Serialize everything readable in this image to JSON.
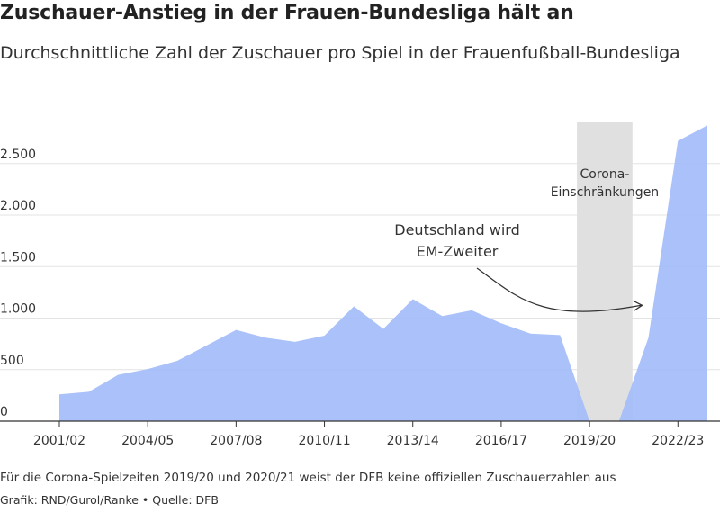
{
  "chart_data": {
    "type": "area",
    "title": "Zuschauer-Anstieg in der Frauen-Bundesliga hält an",
    "subtitle": "Durchschnittliche Zahl der Zuschauer pro Spiel in der Frauenfußball-Bundesliga",
    "xlabel": "",
    "ylabel": "",
    "x": [
      "2001/02",
      "2002/03",
      "2003/04",
      "2004/05",
      "2005/06",
      "2006/07",
      "2007/08",
      "2008/09",
      "2009/10",
      "2010/11",
      "2011/12",
      "2012/13",
      "2013/14",
      "2014/15",
      "2015/16",
      "2016/17",
      "2017/18",
      "2018/19",
      "2019/20",
      "2020/21",
      "2021/22",
      "2022/23",
      "2023/24"
    ],
    "x_tick_labels": [
      "2001/02",
      "2004/05",
      "2007/08",
      "2010/11",
      "2013/14",
      "2016/17",
      "2019/20",
      "2022/23"
    ],
    "series": [
      {
        "values": [
          260,
          285,
          450,
          505,
          585,
          735,
          885,
          810,
          770,
          830,
          1115,
          895,
          1185,
          1020,
          1075,
          950,
          850,
          835,
          null,
          null,
          810,
          2720,
          2870
        ]
      }
    ],
    "ylim": [
      0,
      2900
    ],
    "y_ticks": [
      0,
      500,
      1000,
      1500,
      2000,
      2500
    ],
    "y_tick_labels": [
      "0",
      "500",
      "1.000",
      "1.500",
      "2.000",
      "2.500"
    ],
    "grid": true,
    "colors": {
      "area": "#a3bcf8",
      "shade": "#e0e0e0",
      "grid": "#e3e3e3",
      "axis": "#333333"
    },
    "shaded_region": {
      "label_lines": [
        "Corona-",
        "Einschränkungen"
      ]
    },
    "annotations": [
      {
        "text_lines": [
          "Deutschland wird",
          "EM-Zweiter"
        ],
        "points_to": "2021/22"
      }
    ]
  },
  "footer": {
    "note": "Für die Corona-Spielzeiten 2019/20 und 2020/21 weist der DFB keine offiziellen Zuschauerzahlen aus",
    "credit": "Grafik: RND/Gurol/Ranke • Quelle: DFB"
  }
}
